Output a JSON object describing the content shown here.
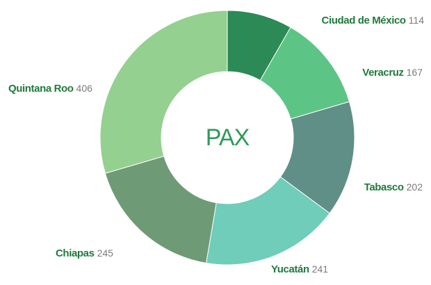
{
  "chart_data": {
    "type": "pie",
    "donut": true,
    "center_label": "PAX",
    "categories": [
      "Ciudad de México",
      "Veracruz",
      "Tabasco",
      "Yucatán",
      "Chiapas",
      "Quintana Roo"
    ],
    "values": [
      114,
      167,
      202,
      241,
      245,
      406
    ],
    "colors": [
      "#2b8a55",
      "#5cc485",
      "#5f8f86",
      "#6fcdb9",
      "#6f9a76",
      "#94d08f"
    ]
  }
}
